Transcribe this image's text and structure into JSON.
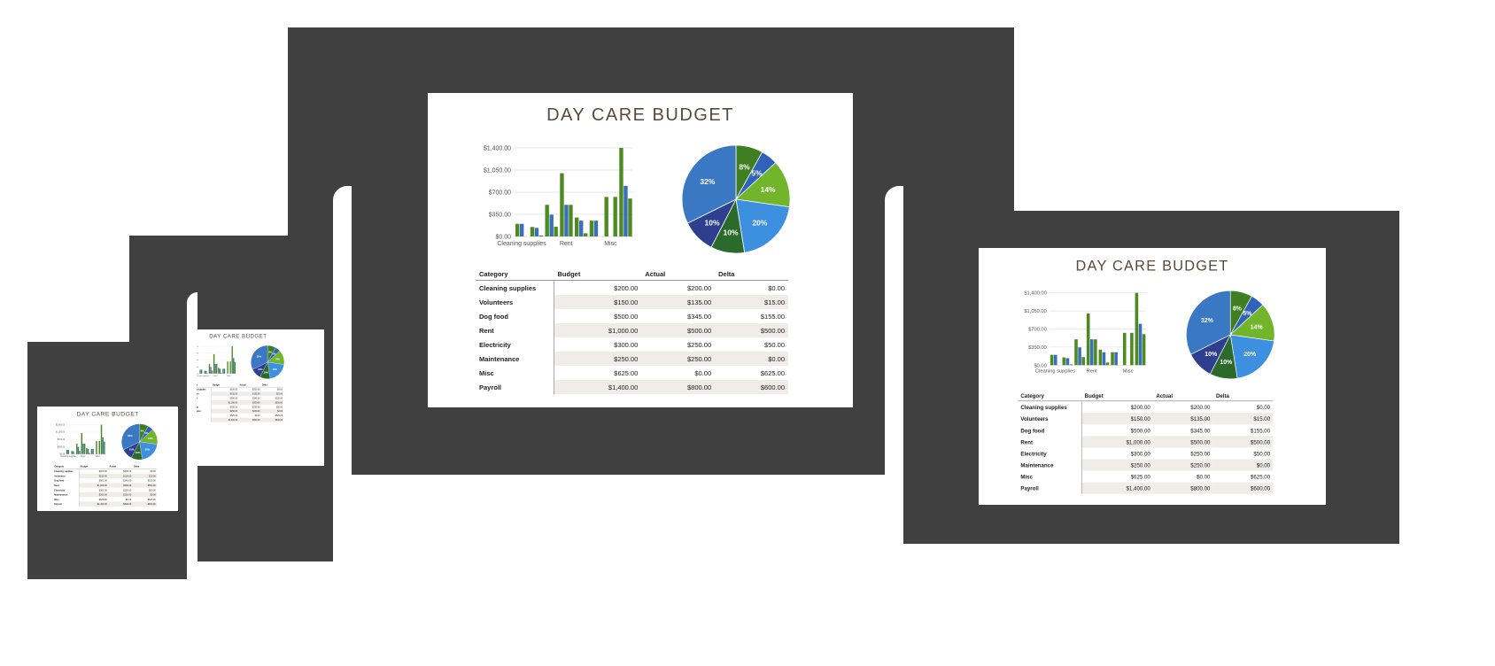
{
  "title": "DAY CARE BUDGET",
  "chart_data": [
    {
      "type": "bar",
      "ylim": [
        0,
        1400
      ],
      "yticks": [
        "$1,400.00",
        "$1,050.00",
        "$700.00",
        "$350.00",
        "$0.00"
      ],
      "categories": [
        "Cleaning supplies",
        "Volunteers",
        "Dog food",
        "Rent",
        "Electricity",
        "Maintenance",
        "Misc",
        "Payroll"
      ],
      "xtick_labels": [
        "Cleaning supplies",
        "Rent",
        "Misc"
      ],
      "series": [
        {
          "name": "Budget",
          "values": [
            200,
            150,
            500,
            1000,
            300,
            250,
            625,
            1400
          ],
          "color": "#4e8a22"
        },
        {
          "name": "Actual",
          "values": [
            200,
            135,
            345,
            500,
            250,
            250,
            0,
            800
          ],
          "color": "#3a6fba"
        },
        {
          "name": "Delta",
          "values": [
            0,
            15,
            155,
            500,
            50,
            0,
            625,
            600
          ],
          "color": "#4e8a22"
        }
      ]
    },
    {
      "type": "pie",
      "slices": [
        {
          "label": "8%",
          "value": 8,
          "color": "#3f7f22"
        },
        {
          "label": "5%",
          "value": 5,
          "color": "#2f62b8"
        },
        {
          "label": "14%",
          "value": 14,
          "color": "#72b52a"
        },
        {
          "label": "20%",
          "value": 20,
          "color": "#3d8fe0"
        },
        {
          "label": "10%",
          "value": 10,
          "color": "#2c6a2b"
        },
        {
          "label": "10%",
          "value": 10,
          "color": "#2f3f8f"
        },
        {
          "label": "32%",
          "value": 32,
          "color": "#3a78c4"
        }
      ]
    }
  ],
  "table": {
    "headers": [
      "Category",
      "Budget",
      "Actual",
      "Delta"
    ],
    "rows": [
      [
        "Cleaning supplies",
        "$200.00",
        "$200.00",
        "$0.00"
      ],
      [
        "Volunteers",
        "$150.00",
        "$135.00",
        "$15.00"
      ],
      [
        "Dog food",
        "$500.00",
        "$345.00",
        "$155.00"
      ],
      [
        "Rent",
        "$1,000.00",
        "$500.00",
        "$500.00"
      ],
      [
        "Electricity",
        "$300.00",
        "$250.00",
        "$50.00"
      ],
      [
        "Maintenance",
        "$250.00",
        "$250.00",
        "$0.00"
      ],
      [
        "Misc",
        "$625.00",
        "$0.00",
        "$625.00"
      ],
      [
        "Payroll",
        "$1,400.00",
        "$800.00",
        "$600.00"
      ]
    ]
  }
}
